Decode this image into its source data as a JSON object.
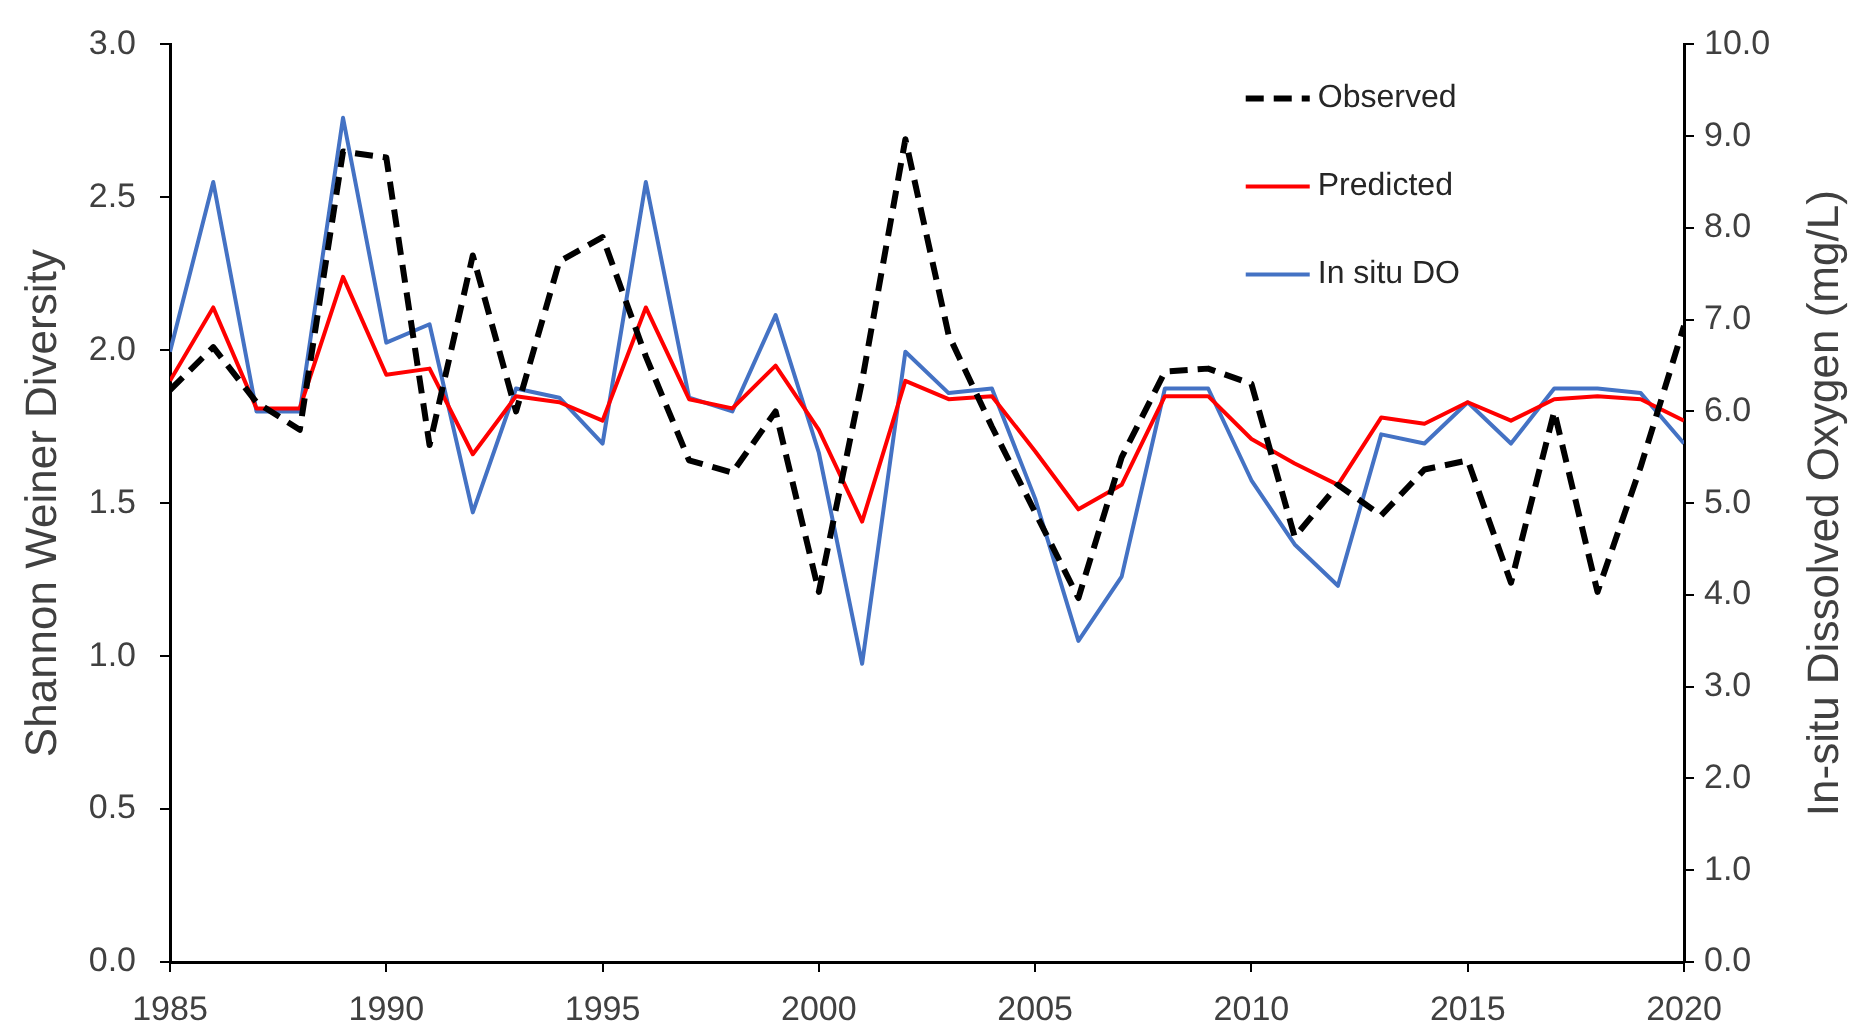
{
  "chart_data": {
    "type": "line",
    "ylabel": "Shannon Weiner Diversity",
    "y2label": "In-situ Dissolved Oxygen (mg/L)",
    "x": [
      1985,
      1986,
      1987,
      1988,
      1989,
      1990,
      1991,
      1992,
      1993,
      1994,
      1995,
      1996,
      1997,
      1998,
      1999,
      2000,
      2001,
      2002,
      2003,
      2004,
      2005,
      2006,
      2007,
      2008,
      2009,
      2010,
      2011,
      2012,
      2013,
      2014,
      2015,
      2016,
      2017,
      2018,
      2019,
      2020
    ],
    "xlim": [
      1985,
      2020
    ],
    "xticks": [
      1985,
      1990,
      1995,
      2000,
      2005,
      2010,
      2015,
      2020
    ],
    "ylim": [
      0,
      3
    ],
    "yticks": [
      {
        "value": 0,
        "label": "0.0"
      },
      {
        "value": 0.5,
        "label": "0.5"
      },
      {
        "value": 1,
        "label": "1.0"
      },
      {
        "value": 1.5,
        "label": "1.5"
      },
      {
        "value": 2,
        "label": "2.0"
      },
      {
        "value": 2.5,
        "label": "2.5"
      },
      {
        "value": 3,
        "label": "3.0"
      }
    ],
    "y2lim": [
      0,
      10
    ],
    "y2ticks": [
      {
        "value": 0,
        "label": "0.0"
      },
      {
        "value": 1,
        "label": "1.0"
      },
      {
        "value": 2,
        "label": "2.0"
      },
      {
        "value": 3,
        "label": "3.0"
      },
      {
        "value": 4,
        "label": "4.0"
      },
      {
        "value": 5,
        "label": "5.0"
      },
      {
        "value": 6,
        "label": "6.0"
      },
      {
        "value": 7,
        "label": "7.0"
      },
      {
        "value": 8,
        "label": "8.0"
      },
      {
        "value": 9,
        "label": "9.0"
      },
      {
        "value": 10,
        "label": "10.0"
      }
    ],
    "grid": false,
    "legend": "top right",
    "marker": "none",
    "series": [
      {
        "name": "Observed",
        "color": "#000000",
        "line_style": "dashed",
        "values": [
          1.87,
          2.01,
          1.83,
          1.74,
          2.65,
          2.63,
          1.69,
          2.31,
          1.8,
          2.29,
          2.37,
          1.98,
          1.64,
          1.6,
          1.8,
          1.21,
          1.9,
          2.69,
          2.05,
          1.75,
          1.47,
          1.19,
          1.65,
          1.93,
          1.94,
          1.89,
          1.39,
          1.56,
          1.46,
          1.61,
          1.64,
          1.24,
          1.8,
          1.21,
          1.62,
          2.08
        ]
      },
      {
        "name": "Predicted",
        "color": "#ff0000",
        "values": [
          1.9,
          2.14,
          1.81,
          1.81,
          2.24,
          1.92,
          1.94,
          1.66,
          1.85,
          1.83,
          1.77,
          2.14,
          1.84,
          1.81,
          1.95,
          1.74,
          1.44,
          1.9,
          1.84,
          1.85,
          1.67,
          1.48,
          1.56,
          1.85,
          1.85,
          1.71,
          1.63,
          1.56,
          1.78,
          1.76,
          1.83,
          1.77,
          1.84,
          1.85,
          1.84,
          1.77
        ]
      },
      {
        "name": "In situ DO",
        "color": "#4472c4",
        "axis": "y2",
        "values": [
          6.65,
          8.5,
          6.0,
          6.0,
          9.2,
          6.75,
          6.95,
          4.9,
          6.25,
          6.15,
          5.65,
          8.5,
          6.15,
          6.0,
          7.05,
          5.55,
          3.25,
          6.65,
          6.2,
          6.25,
          5.05,
          3.5,
          4.2,
          6.25,
          6.25,
          5.25,
          4.55,
          4.1,
          5.75,
          5.65,
          6.1,
          5.65,
          6.25,
          6.25,
          6.2,
          5.65
        ]
      }
    ]
  }
}
